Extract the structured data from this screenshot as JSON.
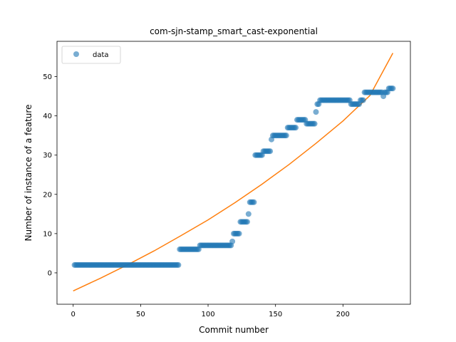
{
  "chart_data": {
    "type": "scatter",
    "title": "com-sjn-stamp_smart_cast-exponential",
    "xlabel": "Commit number",
    "ylabel": "Number of instance of a feature",
    "xlim": [
      -12,
      250
    ],
    "ylim": [
      -8,
      59
    ],
    "xticks": [
      0,
      50,
      100,
      150,
      200
    ],
    "yticks": [
      0,
      10,
      20,
      30,
      40,
      50
    ],
    "grid": false,
    "legend": {
      "placement": "top-left",
      "entries": [
        "data"
      ]
    },
    "colors": {
      "data": "#1f77b4",
      "fit": "#ff7f0e"
    },
    "series": [
      {
        "name": "data",
        "kind": "scatter",
        "steps": [
          [
            1,
            78,
            2
          ],
          [
            79,
            93,
            6
          ],
          [
            94,
            117,
            7
          ],
          [
            118,
            118,
            8
          ],
          [
            119,
            123,
            10
          ],
          [
            124,
            129,
            13
          ],
          [
            130,
            130,
            15
          ],
          [
            131,
            134,
            18
          ],
          [
            135,
            140,
            30
          ],
          [
            141,
            146,
            31
          ],
          [
            147,
            147,
            34
          ],
          [
            148,
            149,
            35
          ],
          [
            150,
            158,
            35
          ],
          [
            159,
            165,
            37
          ],
          [
            166,
            172,
            39
          ],
          [
            173,
            179,
            38
          ],
          [
            180,
            180,
            41
          ],
          [
            181,
            182,
            43
          ],
          [
            183,
            205,
            44
          ],
          [
            206,
            212,
            43
          ],
          [
            213,
            215,
            44
          ],
          [
            216,
            229,
            46
          ],
          [
            230,
            230,
            45
          ],
          [
            231,
            233,
            46
          ],
          [
            234,
            237,
            47
          ]
        ]
      },
      {
        "kind": "line",
        "x": [
          0,
          20,
          40,
          60,
          80,
          100,
          120,
          140,
          160,
          180,
          200,
          220,
          237
        ],
        "y": [
          -4.6,
          -1.4,
          2.0,
          5.6,
          9.5,
          13.5,
          17.9,
          22.6,
          27.6,
          33.0,
          38.7,
          45.2,
          56.0
        ]
      }
    ]
  }
}
